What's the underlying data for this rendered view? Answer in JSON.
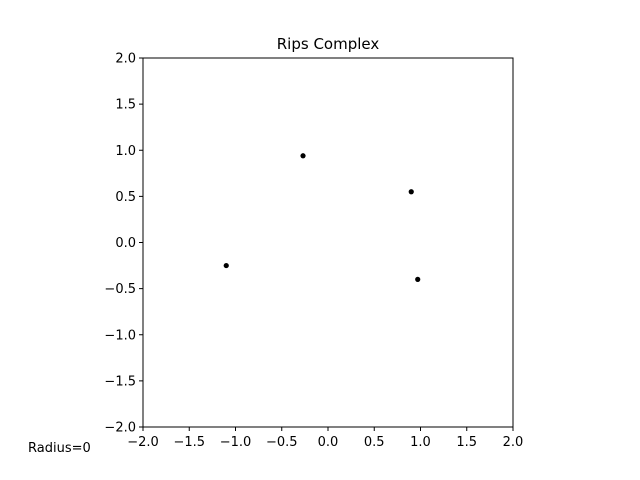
{
  "chart_data": {
    "type": "scatter",
    "title": "Rips Complex",
    "xlabel": "",
    "ylabel": "",
    "xlim": [
      -2.0,
      2.0
    ],
    "ylim": [
      -2.0,
      2.0
    ],
    "xticks": [
      "−2.0",
      "−1.5",
      "−1.0",
      "−0.5",
      "0.0",
      "0.5",
      "1.0",
      "1.5",
      "2.0"
    ],
    "yticks": [
      "−2.0",
      "−1.5",
      "−1.0",
      "−0.5",
      "0.0",
      "0.5",
      "1.0",
      "1.5",
      "2.0"
    ],
    "grid": false,
    "legend": "none",
    "points": [
      {
        "x": -1.1,
        "y": -0.25
      },
      {
        "x": -0.27,
        "y": 0.94
      },
      {
        "x": 0.9,
        "y": 0.55
      },
      {
        "x": 0.97,
        "y": -0.4
      }
    ],
    "point_color": "#000000",
    "annotation": "Radius=0"
  }
}
